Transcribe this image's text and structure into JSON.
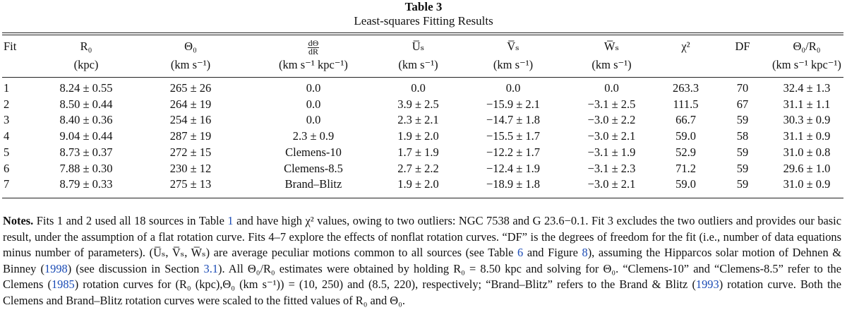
{
  "table": {
    "number": "Table 3",
    "title": "Least-squares Fitting Results",
    "header_row1": [
      "Fit",
      "R₀",
      "Θ₀",
      "",
      "U̅ₛ",
      "V̅ₛ",
      "W̅ₛ",
      "χ²",
      "DF",
      "Θ₀/R₀"
    ],
    "dtheta_dr_num": "dΘ",
    "dtheta_dr_den": "dR",
    "header_row2": [
      "",
      "(kpc)",
      "(km s⁻¹)",
      "(km s⁻¹ kpc⁻¹)",
      "(km s⁻¹)",
      "(km s⁻¹)",
      "(km s⁻¹)",
      "",
      "",
      "(km s⁻¹ kpc⁻¹)"
    ],
    "rows": [
      [
        "1",
        "8.24 ± 0.55",
        "265 ± 26",
        "0.0",
        "0.0",
        "0.0",
        "0.0",
        "263.3",
        "70",
        "32.4 ± 1.3"
      ],
      [
        "2",
        "8.50 ± 0.44",
        "264 ± 19",
        "0.0",
        "3.9 ± 2.5",
        "−15.9 ± 2.1",
        "−3.1 ± 2.5",
        "111.5",
        "67",
        "31.1 ± 1.1"
      ],
      [
        "3",
        "8.40 ± 0.36",
        "254 ± 16",
        "0.0",
        "2.3 ± 2.1",
        "−14.7 ± 1.8",
        "−3.0 ± 2.2",
        "66.7",
        "59",
        "30.3 ± 0.9"
      ],
      [
        "4",
        "9.04 ± 0.44",
        "287 ± 19",
        "2.3 ± 0.9",
        "1.9 ± 2.0",
        "−15.5 ± 1.7",
        "−3.0 ± 2.1",
        "59.0",
        "58",
        "31.1 ± 0.9"
      ],
      [
        "5",
        "8.73 ± 0.37",
        "272 ± 15",
        "Clemens-10",
        "1.7 ± 1.9",
        "−12.2 ± 1.7",
        "−3.1 ± 1.9",
        "52.9",
        "59",
        "31.0 ± 0.8"
      ],
      [
        "6",
        "7.88 ± 0.30",
        "230 ± 12",
        "Clemens-8.5",
        "2.7 ± 2.2",
        "−12.4 ± 1.9",
        "−3.1 ± 2.3",
        "71.2",
        "59",
        "29.6 ± 1.0"
      ],
      [
        "7",
        "8.79 ± 0.33",
        "275 ± 13",
        "Brand–Blitz",
        "1.9 ± 2.0",
        "−18.9 ± 1.8",
        "−3.0 ± 2.1",
        "59.0",
        "59",
        "31.0 ± 0.9"
      ]
    ]
  },
  "notes": {
    "label": "Notes.",
    "segments": [
      {
        "text": " Fits 1 and 2 used all 18 sources in Table ",
        "ref": false
      },
      {
        "text": "1",
        "ref": true
      },
      {
        "text": " and have high χ² values, owing to two outliers: NGC 7538 and G 23.6−0.1. Fit 3 excludes the two outliers and provides our basic result, under the assumption of a flat rotation curve. Fits 4–7 explore the effects of nonflat rotation curves. “DF” is the degrees of freedom for the fit (i.e., number of data equations minus number of parameters). (U̅ₛ, V̅ₛ, W̅ₛ) are average peculiar motions common to all sources (see Table ",
        "ref": false
      },
      {
        "text": "6",
        "ref": true
      },
      {
        "text": " and Figure ",
        "ref": false
      },
      {
        "text": "8",
        "ref": true
      },
      {
        "text": "), assuming the Hipparcos solar motion of Dehnen & Binney (",
        "ref": false
      },
      {
        "text": "1998",
        "ref": true
      },
      {
        "text": ") (see discussion in Section ",
        "ref": false
      },
      {
        "text": "3.1",
        "ref": true
      },
      {
        "text": "). All Θ₀/R₀ estimates were obtained by holding R₀ = 8.50 kpc and solving for Θ₀. “Clemens-10” and “Clemens-8.5” refer to the Clemens (",
        "ref": false
      },
      {
        "text": "1985",
        "ref": true
      },
      {
        "text": ") rotation curves for (R₀ (kpc),Θ₀ (km s⁻¹)) = (10, 250) and (8.5, 220), respectively; “Brand–Blitz” refers to the Brand & Blitz (",
        "ref": false
      },
      {
        "text": "1993",
        "ref": true
      },
      {
        "text": ") rotation curve. Both the Clemens and Brand–Blitz rotation curves were scaled to the fitted values of R₀ and Θ₀.",
        "ref": false
      }
    ]
  },
  "colors": {
    "text": "#111111",
    "reference_link": "#1a4bb5",
    "background": "#ffffff"
  }
}
